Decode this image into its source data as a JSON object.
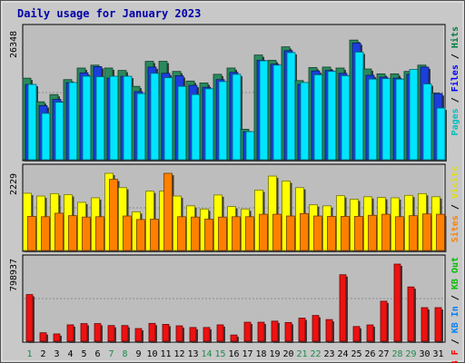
{
  "chart_data": {
    "type": "bar",
    "title": "Daily usage for January 2023",
    "categories": [
      "1",
      "2",
      "3",
      "4",
      "5",
      "6",
      "7",
      "8",
      "9",
      "10",
      "11",
      "12",
      "13",
      "14",
      "15",
      "16",
      "17",
      "18",
      "19",
      "20",
      "21",
      "22",
      "23",
      "24",
      "25",
      "26",
      "27",
      "28",
      "29",
      "30",
      "31"
    ],
    "weekend_days": [
      1,
      7,
      8,
      14,
      15,
      21,
      22,
      28,
      29
    ],
    "panels": [
      {
        "name": "hits-files-pages",
        "ylabel_max": "26348",
        "ylim": [
          0,
          26348
        ],
        "legend": [
          {
            "label": "Pages",
            "color": "#00c0c0"
          },
          {
            "label": "Files",
            "color": "#0000ff"
          },
          {
            "label": "Hits",
            "color": "#008040"
          }
        ],
        "series": [
          {
            "name": "Hits",
            "color": "#2a8a5c",
            "values": [
              17100,
              12200,
              13700,
              16800,
              19200,
              19800,
              19200,
              18700,
              15400,
              20600,
              20600,
              18500,
              16500,
              16100,
              17900,
              19200,
              6500,
              21900,
              20800,
              23600,
              16600,
              19300,
              19400,
              19200,
              25000,
              19000,
              18000,
              18000,
              18500,
              19800,
              14000
            ]
          },
          {
            "name": "Files",
            "color": "#1a3fdd",
            "values": [
              15800,
              11400,
              12700,
              16200,
              18200,
              19500,
              17100,
              17500,
              14300,
              19400,
              18100,
              17600,
              15600,
              15200,
              16800,
              18300,
              6000,
              20800,
              20000,
              22800,
              15800,
              18600,
              18700,
              18100,
              24400,
              17700,
              17300,
              17100,
              17900,
              19400,
              13900
            ]
          },
          {
            "name": "Pages",
            "color": "#00e5ff",
            "values": [
              15800,
              9800,
              12100,
              16200,
              17500,
              17400,
              17500,
              17500,
              13900,
              18100,
              17200,
              15400,
              13700,
              14900,
              16400,
              17900,
              6000,
              20700,
              19800,
              22400,
              16200,
              17800,
              18500,
              17600,
              22500,
              16900,
              17000,
              16900,
              18900,
              15900,
              10900
            ]
          }
        ]
      },
      {
        "name": "visits-sites",
        "ylabel_max": "2229",
        "ylim": [
          0,
          2229
        ],
        "legend": [
          {
            "label": "Sites",
            "color": "#ff8000"
          },
          {
            "label": "Visits",
            "color": "#e0e000"
          }
        ],
        "series": [
          {
            "name": "Visits",
            "color": "#ffff00",
            "values": [
              1660,
              1580,
              1650,
              1620,
              1400,
              1530,
              2229,
              1820,
              1130,
              1720,
              1720,
              1580,
              1300,
              1210,
              1610,
              1280,
              1210,
              1750,
              2150,
              2010,
              1820,
              1330,
              1300,
              1590,
              1490,
              1560,
              1540,
              1530,
              1600,
              1650,
              1560
            ]
          },
          {
            "name": "Sites",
            "color": "#ff8000",
            "values": [
              1000,
              990,
              1090,
              1020,
              980,
              990,
              2060,
              1010,
              910,
              920,
              2229,
              990,
              980,
              920,
              980,
              990,
              990,
              1060,
              1060,
              1010,
              1080,
              1010,
              1000,
              1000,
              1000,
              1030,
              1060,
              990,
              1020,
              1070,
              1060
            ]
          }
        ]
      },
      {
        "name": "kbytes",
        "ylabel_max": "798937",
        "ylim": [
          0,
          798937
        ],
        "legend": [
          {
            "label": "KB F",
            "color": "#ff0000"
          },
          {
            "label": "KB In",
            "color": "#0080ff"
          },
          {
            "label": "KB Out",
            "color": "#00c000"
          }
        ],
        "series": [
          {
            "name": "KB F",
            "color": "#ee1111",
            "values": [
              487000,
              96000,
              84000,
              177000,
              190000,
              190000,
              170000,
              170000,
              139000,
              192000,
              182000,
              167000,
              150000,
              150000,
              177000,
              73000,
              204000,
              204000,
              215000,
              201000,
              246000,
              273000,
              231000,
              690000,
              160000,
              176000,
              419000,
              798937,
              565000,
              353000,
              353000
            ]
          }
        ]
      }
    ]
  }
}
